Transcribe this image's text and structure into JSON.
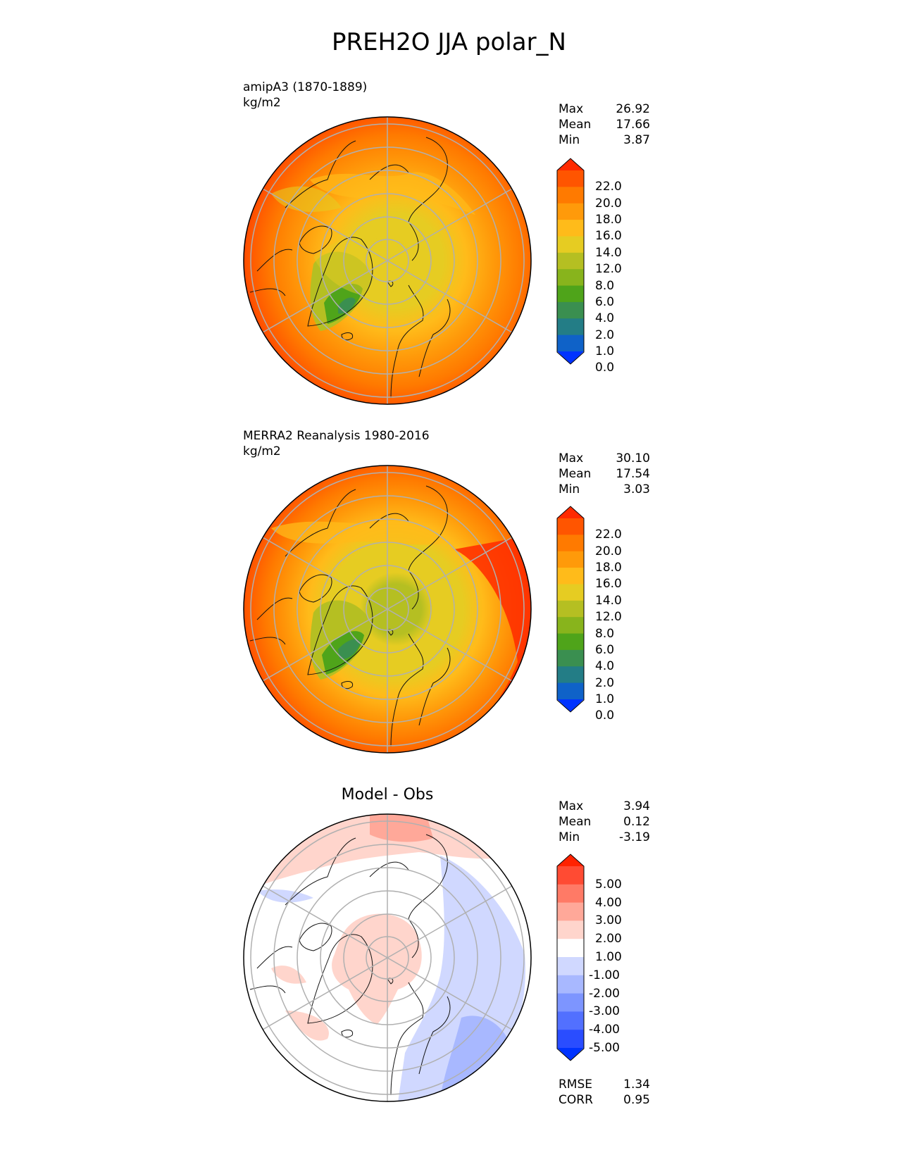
{
  "title": "PREH2O JJA polar_N",
  "panels": [
    {
      "id": "model",
      "label_line1": "amipA3 (1870-1889)",
      "label_line2": "kg/m2",
      "stats": {
        "max_label": "Max",
        "max": "26.92",
        "mean_label": "Mean",
        "mean": "17.66",
        "min_label": "Min",
        "min": "3.87"
      },
      "colorbar": {
        "labels": [
          "22.0",
          "20.0",
          "18.0",
          "16.0",
          "14.0",
          "12.0",
          "8.0",
          "6.0",
          "4.0",
          "2.0",
          "1.0",
          "0.0"
        ],
        "colors": [
          "#ff2a00",
          "#ff5500",
          "#ff7a00",
          "#ff9a0a",
          "#ffbb1a",
          "#e6cc22",
          "#b5bf22",
          "#88b41c",
          "#4fa41a",
          "#3a8f50",
          "#237d86",
          "#0f62c8",
          "#0033ff"
        ]
      }
    },
    {
      "id": "obs",
      "label_line1": "MERRA2 Reanalysis 1980-2016",
      "label_line2": "kg/m2",
      "stats": {
        "max_label": "Max",
        "max": "30.10",
        "mean_label": "Mean",
        "mean": "17.54",
        "min_label": "Min",
        "min": "3.03"
      },
      "colorbar": {
        "labels": [
          "22.0",
          "20.0",
          "18.0",
          "16.0",
          "14.0",
          "12.0",
          "8.0",
          "6.0",
          "4.0",
          "2.0",
          "1.0",
          "0.0"
        ],
        "colors": [
          "#ff2a00",
          "#ff5500",
          "#ff7a00",
          "#ff9a0a",
          "#ffbb1a",
          "#e6cc22",
          "#b5bf22",
          "#88b41c",
          "#4fa41a",
          "#3a8f50",
          "#237d86",
          "#0f62c8",
          "#0033ff"
        ]
      }
    },
    {
      "id": "diff",
      "title": "Model - Obs",
      "stats": {
        "max_label": "Max",
        "max": "3.94",
        "mean_label": "Mean",
        "mean": "0.12",
        "min_label": "Min",
        "min": "-3.19"
      },
      "extra_stats": {
        "rmse_label": "RMSE",
        "rmse": "1.34",
        "corr_label": "CORR",
        "corr": "0.95"
      },
      "colorbar": {
        "labels": [
          "5.00",
          "4.00",
          "3.00",
          "2.00",
          "1.00",
          "-1.00",
          "-2.00",
          "-3.00",
          "-4.00",
          "-5.00"
        ],
        "colors": [
          "#ff2200",
          "#ff4b33",
          "#ff7a66",
          "#ffa899",
          "#ffd5cc",
          "#ffffff",
          "#d0d8ff",
          "#a8b8ff",
          "#7d95ff",
          "#5270ff",
          "#2a4dff",
          "#0033ff"
        ]
      }
    }
  ]
}
